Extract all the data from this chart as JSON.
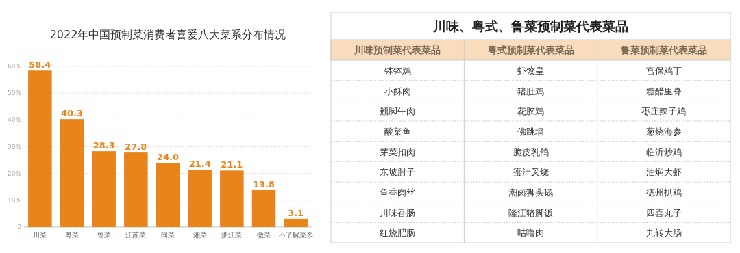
{
  "chart_data": [
    {
      "type": "bar",
      "title": "2022年中国预制菜消费者喜爱八大菜系分布情况",
      "categories": [
        "川菜",
        "粤菜",
        "鲁菜",
        "江苏菜",
        "闽菜",
        "湘菜",
        "浙江菜",
        "徽菜",
        "不了解菜系"
      ],
      "values": [
        58.4,
        40.3,
        28.3,
        27.8,
        24.0,
        21.4,
        21.1,
        13.8,
        3.1
      ],
      "value_labels": [
        "58.4",
        "40.3",
        "28.3",
        "27.8",
        "24.0",
        "21.4",
        "21.1",
        "13.8",
        "3.1"
      ],
      "color": "#e8841a",
      "ylim": [
        0,
        60
      ],
      "yticks": [
        0,
        {
          "value": 10,
          "label": "10%"
        },
        {
          "value": 20,
          "label": "20%"
        },
        {
          "value": 30,
          "label": "30%"
        },
        {
          "value": 40,
          "label": "40%"
        },
        {
          "value": 50,
          "label": "50%"
        },
        {
          "value": 60,
          "label": "60%"
        }
      ],
      "grid": "y"
    },
    {
      "type": "other",
      "title": "川味、粤式、鲁菜预制菜代表菜品",
      "categories": [
        "川味预制菜代表菜品",
        "粤式预制菜代表菜品",
        "鲁菜预制菜代表菜品"
      ],
      "annotations": [
        "钵钵鸡",
        "虾饺皇",
        "宫保鸡丁",
        "小酥肉",
        "猪肚鸡",
        "糖醋里脊",
        "翘脚牛肉",
        "花胶鸡",
        "枣庄辣子鸡",
        "酸菜鱼",
        "佛跳墙",
        "葱烧海参",
        "芽菜扣肉",
        "脆皮乳鸽",
        "临沂炒鸡",
        "东坡肘子",
        "蜜汁叉烧",
        "油焖大虾",
        "鱼香肉丝",
        "潮卤狮头鹅",
        "德州扒鸡",
        "川味香肠",
        "隆江猪脚饭",
        "四喜丸子",
        "红烧肥肠",
        "咕噜肉",
        "九转大肠"
      ]
    }
  ]
}
